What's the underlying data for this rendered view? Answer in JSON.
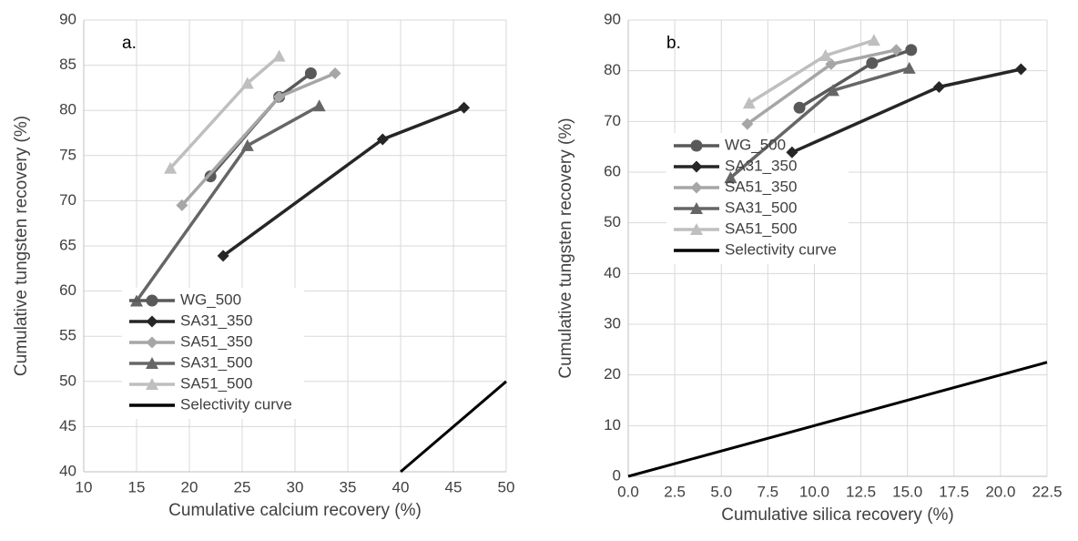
{
  "chart_data": [
    {
      "type": "line",
      "annotation": "a.",
      "x_label": "Cumulative calcium recovery (%)",
      "y_label": "Cumulative tungsten recovery (%)",
      "xlim": [
        10,
        50
      ],
      "xticks": [
        10,
        15,
        20,
        25,
        30,
        35,
        40,
        45,
        50
      ],
      "ylim": [
        40,
        90
      ],
      "yticks": [
        40,
        45,
        50,
        55,
        60,
        65,
        70,
        75,
        80,
        85,
        90
      ],
      "grid": true,
      "legend": "lower left",
      "series": [
        {
          "name": "WG_500",
          "color": "#595959",
          "marker": "circle",
          "x": [
            22,
            28.5,
            31.5
          ],
          "values": [
            72.7,
            81.5,
            84.1
          ]
        },
        {
          "name": "SA31_350",
          "color": "#262626",
          "marker": "diamond",
          "x": [
            23.2,
            38.3,
            46
          ],
          "values": [
            63.9,
            76.8,
            80.3
          ]
        },
        {
          "name": "SA51_350",
          "color": "#a6a6a6",
          "marker": "diamond",
          "x": [
            19.3,
            28.5,
            33.8
          ],
          "values": [
            69.5,
            81.5,
            84.1
          ]
        },
        {
          "name": "SA31_500",
          "color": "#666666",
          "marker": "triangle",
          "x": [
            15,
            25.5,
            32.3
          ],
          "values": [
            58.9,
            76.1,
            80.5
          ]
        },
        {
          "name": "SA51_500",
          "color": "#bfbfbf",
          "marker": "triangle",
          "x": [
            18.2,
            25.5,
            28.5
          ],
          "values": [
            73.6,
            83,
            86
          ]
        },
        {
          "name": "Selectivity curve",
          "color": "#000000",
          "marker": "none",
          "x": [
            40,
            50
          ],
          "values": [
            40,
            50
          ]
        }
      ]
    },
    {
      "type": "line",
      "annotation": "b.",
      "x_label": "Cumulative silica recovery (%)",
      "y_label": "Cumulative tungsten recovery (%)",
      "xlim": [
        0,
        22.5
      ],
      "xticks": [
        {
          "value": 0,
          "label": "0.0"
        },
        2.5,
        {
          "value": 5,
          "label": "5.0"
        },
        7.5,
        {
          "value": 10,
          "label": "10.0"
        },
        12.5,
        {
          "value": 15,
          "label": "15.0"
        },
        17.5,
        {
          "value": 20,
          "label": "20.0"
        },
        22.5
      ],
      "ylim": [
        0,
        90
      ],
      "yticks": [
        0,
        10,
        20,
        30,
        40,
        50,
        60,
        70,
        80,
        90
      ],
      "grid": true,
      "legend": "center left",
      "series": [
        {
          "name": "WG_500",
          "color": "#595959",
          "marker": "circle",
          "x": [
            9.2,
            13.1,
            15.2
          ],
          "values": [
            72.7,
            81.5,
            84.1
          ]
        },
        {
          "name": "SA31_350",
          "color": "#262626",
          "marker": "diamond",
          "x": [
            8.8,
            16.7,
            21.1
          ],
          "values": [
            63.9,
            76.8,
            80.3
          ]
        },
        {
          "name": "SA51_350",
          "color": "#a6a6a6",
          "marker": "diamond",
          "x": [
            6.4,
            10.9,
            14.4
          ],
          "values": [
            69.5,
            81.3,
            84.1
          ]
        },
        {
          "name": "SA31_500",
          "color": "#666666",
          "marker": "triangle",
          "x": [
            5.5,
            11,
            15.1
          ],
          "values": [
            58.9,
            76.1,
            80.5
          ]
        },
        {
          "name": "SA51_500",
          "color": "#bfbfbf",
          "marker": "triangle",
          "x": [
            6.5,
            10.6,
            13.2
          ],
          "values": [
            73.6,
            83,
            86
          ]
        },
        {
          "name": "Selectivity curve",
          "color": "#000000",
          "marker": "none",
          "x": [
            0,
            22.5
          ],
          "values": [
            0,
            22.5
          ]
        }
      ]
    }
  ]
}
